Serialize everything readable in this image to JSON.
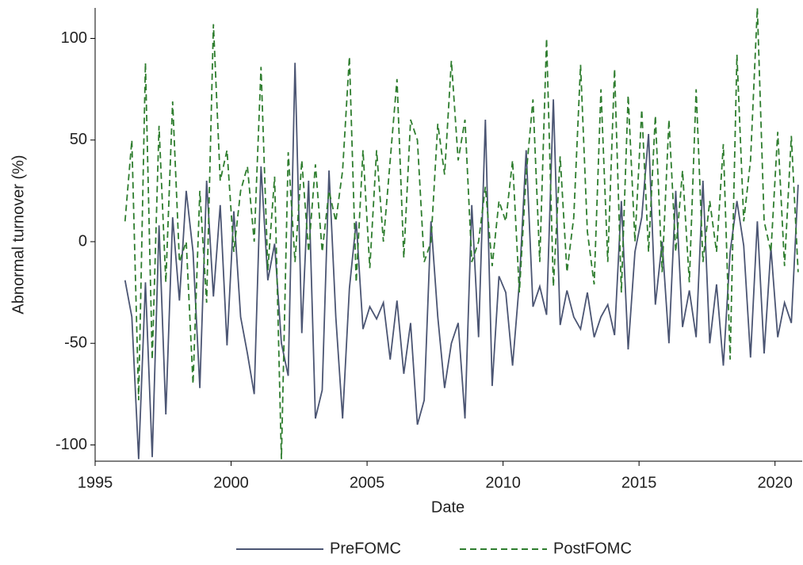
{
  "chart_data": {
    "type": "line",
    "x_label": "Date",
    "y_label": "Abnormal turnover (%)",
    "x": [
      1996.1,
      1996.35,
      1996.6,
      1996.85,
      1997.1,
      1997.35,
      1997.6,
      1997.85,
      1998.1,
      1998.35,
      1998.6,
      1998.85,
      1999.1,
      1999.35,
      1999.6,
      1999.85,
      2000.1,
      2000.35,
      2000.6,
      2000.85,
      2001.1,
      2001.35,
      2001.6,
      2001.85,
      2002.1,
      2002.35,
      2002.6,
      2002.85,
      2003.1,
      2003.35,
      2003.6,
      2003.85,
      2004.1,
      2004.35,
      2004.6,
      2004.85,
      2005.1,
      2005.35,
      2005.6,
      2005.85,
      2006.1,
      2006.35,
      2006.6,
      2006.85,
      2007.1,
      2007.35,
      2007.6,
      2007.85,
      2008.1,
      2008.35,
      2008.6,
      2008.85,
      2009.1,
      2009.35,
      2009.6,
      2009.85,
      2010.1,
      2010.35,
      2010.6,
      2010.85,
      2011.1,
      2011.35,
      2011.6,
      2011.85,
      2012.1,
      2012.35,
      2012.6,
      2012.85,
      2013.1,
      2013.35,
      2013.6,
      2013.85,
      2014.1,
      2014.35,
      2014.6,
      2014.85,
      2015.1,
      2015.35,
      2015.6,
      2015.85,
      2016.1,
      2016.35,
      2016.6,
      2016.85,
      2017.1,
      2017.35,
      2017.6,
      2017.85,
      2018.1,
      2018.35,
      2018.6,
      2018.85,
      2019.1,
      2019.35,
      2019.6,
      2019.85,
      2020.1,
      2020.35,
      2020.6,
      2020.85
    ],
    "series": [
      {
        "name": "PreFOMC",
        "color": "#4b5573",
        "dash": false,
        "values": [
          -19,
          -37,
          -107,
          -20,
          -106,
          8,
          -85,
          12,
          -29,
          25,
          -5,
          -72,
          30,
          -27,
          18,
          -51,
          15,
          -37,
          -55,
          -75,
          37,
          -19,
          -1,
          -50,
          -66,
          88,
          -45,
          30,
          -87,
          -73,
          35,
          -37,
          -87,
          -23,
          10,
          -43,
          -32,
          -38,
          -30,
          -58,
          -29,
          -65,
          -40,
          -90,
          -78,
          10,
          -37,
          -72,
          -50,
          -40,
          -87,
          18,
          -47,
          60,
          -71,
          -17,
          -25,
          -61,
          -20,
          45,
          -32,
          -22,
          -36,
          70,
          -41,
          -24,
          -37,
          -43,
          -25,
          -47,
          -37,
          -31,
          -46,
          20,
          -53,
          -5,
          12,
          53,
          -31,
          0,
          -50,
          25,
          -42,
          -24,
          -47,
          30,
          -50,
          -21,
          -61,
          -5,
          20,
          -2,
          -57,
          10,
          -55,
          -3,
          -47,
          -30,
          -40,
          28
        ]
      },
      {
        "name": "PostFOMC",
        "color": "#2e7d2e",
        "dash": true,
        "values": [
          10,
          50,
          -78,
          88,
          -58,
          57,
          -20,
          69,
          -10,
          0,
          -70,
          25,
          -30,
          107,
          30,
          45,
          -5,
          25,
          37,
          0,
          86,
          -14,
          32,
          -107,
          44,
          -10,
          40,
          -5,
          38,
          -5,
          25,
          10,
          35,
          91,
          -20,
          45,
          -13,
          45,
          0,
          40,
          80,
          -8,
          60,
          50,
          -10,
          0,
          58,
          33,
          89,
          40,
          60,
          -10,
          0,
          27,
          -12,
          20,
          10,
          40,
          -25,
          33,
          70,
          -10,
          100,
          -22,
          42,
          -15,
          12,
          87,
          5,
          -21,
          75,
          -10,
          85,
          -25,
          72,
          0,
          65,
          -5,
          62,
          -15,
          60,
          -5,
          35,
          -20,
          75,
          -10,
          20,
          -5,
          48,
          -58,
          92,
          10,
          40,
          115,
          10,
          -5,
          54,
          -12,
          52,
          -15
        ]
      }
    ],
    "xlim": [
      1995,
      2021
    ],
    "ylim": [
      -108,
      115
    ],
    "xticks": [
      1995,
      2000,
      2005,
      2010,
      2015,
      2020
    ],
    "yticks": [
      -100,
      -50,
      0,
      50,
      100
    ],
    "legend": "bottom"
  }
}
